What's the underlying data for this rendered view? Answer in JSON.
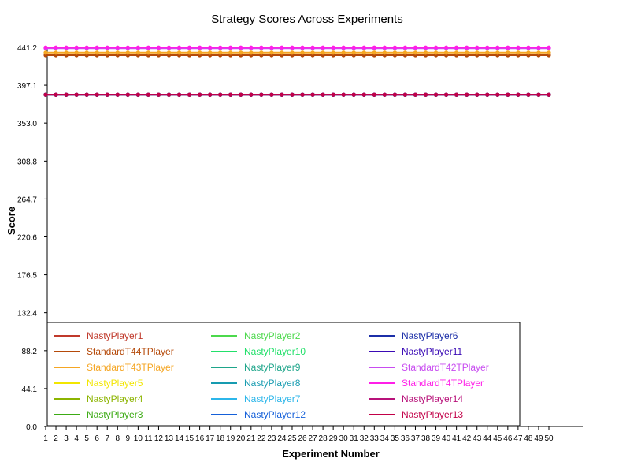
{
  "chart_data": {
    "type": "line",
    "title": "Strategy Scores Across Experiments",
    "xlabel": "Experiment Number",
    "ylabel": "Score",
    "ylim": [
      0,
      441.2
    ],
    "y_ticks": [
      "0.0",
      "44.1",
      "88.2",
      "132.4",
      "176.5",
      "220.6",
      "264.7",
      "308.8",
      "353.0",
      "397.1",
      "441.2"
    ],
    "x": [
      1,
      2,
      3,
      4,
      5,
      6,
      7,
      8,
      9,
      10,
      11,
      12,
      13,
      14,
      15,
      16,
      17,
      18,
      19,
      20,
      21,
      22,
      23,
      24,
      25,
      26,
      27,
      28,
      29,
      30,
      31,
      32,
      33,
      34,
      35,
      36,
      37,
      38,
      39,
      40,
      41,
      42,
      43,
      44,
      45,
      46,
      47,
      48,
      49,
      50
    ],
    "grid": false,
    "legend_position": "bottom-left inside plot",
    "legend_columns": 3,
    "series": [
      {
        "name": "NastyPlayer1",
        "color": "#c0392b",
        "value": 386
      },
      {
        "name": "StandardT44TPlayer",
        "color": "#b54a0a",
        "value": 432
      },
      {
        "name": "StandardT43TPlayer",
        "color": "#f5a623",
        "value": 435
      },
      {
        "name": "NastyPlayer5",
        "color": "#f2e600",
        "value": 386
      },
      {
        "name": "NastyPlayer4",
        "color": "#8cb400",
        "value": 386
      },
      {
        "name": "NastyPlayer3",
        "color": "#3cab14",
        "value": 386
      },
      {
        "name": "NastyPlayer2",
        "color": "#4cd94c",
        "value": 386
      },
      {
        "name": "NastyPlayer10",
        "color": "#22e06a",
        "value": 386
      },
      {
        "name": "NastyPlayer9",
        "color": "#1ea58a",
        "value": 386
      },
      {
        "name": "NastyPlayer8",
        "color": "#169bb0",
        "value": 386
      },
      {
        "name": "NastyPlayer7",
        "color": "#2cb6ea",
        "value": 386
      },
      {
        "name": "NastyPlayer12",
        "color": "#1560d9",
        "value": 386
      },
      {
        "name": "NastyPlayer6",
        "color": "#1c2fa8",
        "value": 386
      },
      {
        "name": "NastyPlayer11",
        "color": "#3a0ab5",
        "value": 386
      },
      {
        "name": "StandardT42TPlayer",
        "color": "#c84cf0",
        "value": 440
      },
      {
        "name": "StandardT4TPlayer",
        "color": "#ff1fe8",
        "value": 441
      },
      {
        "name": "NastyPlayer14",
        "color": "#b8127a",
        "value": 386
      },
      {
        "name": "NastyPlayer13",
        "color": "#c20048",
        "value": 386
      }
    ]
  }
}
